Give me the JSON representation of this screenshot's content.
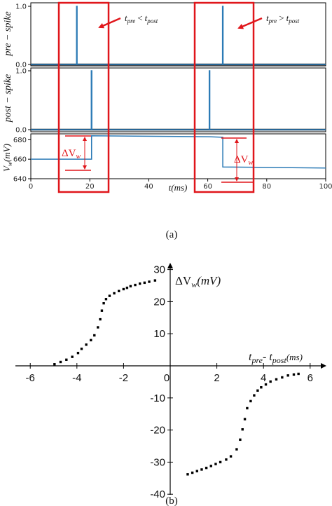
{
  "captions": {
    "a": "(a)",
    "b": "(b)"
  },
  "colors": {
    "trace": "#2c7bb6",
    "annotation": "#e0161b",
    "axis": "#000000",
    "points": "#000000"
  },
  "chart_data": [
    {
      "type": "line",
      "panel": "a",
      "xlabel": "t(ms)",
      "xlim": [
        0,
        100
      ],
      "xticks": [
        "0",
        "20",
        "40",
        "60",
        "80",
        "100"
      ],
      "panels": [
        {
          "ylabel": "pre − spike",
          "ylim": [
            0,
            1
          ],
          "yticks": [
            "0.0",
            "1.0"
          ],
          "series": [
            {
              "x": [
                0,
                15.5,
                15.5,
                15.7,
                15.7,
                65,
                65,
                65.2,
                65.2,
                100
              ],
              "y": [
                0,
                0,
                1,
                1,
                0,
                0,
                1,
                1,
                0,
                0
              ]
            }
          ]
        },
        {
          "ylabel": "post − spike",
          "ylim": [
            0,
            1
          ],
          "yticks": [
            "0.0",
            "1.0"
          ],
          "series": [
            {
              "x": [
                0,
                20.5,
                20.5,
                20.7,
                20.7,
                60.5,
                60.5,
                60.7,
                60.7,
                100
              ],
              "y": [
                0,
                0,
                1,
                1,
                0,
                0,
                1,
                1,
                0,
                0
              ]
            }
          ]
        },
        {
          "ylabel": "V_w(mV)",
          "ylim": [
            640,
            686
          ],
          "yticks": [
            "640",
            "660",
            "680"
          ],
          "series": [
            {
              "x": [
                0,
                20.6,
                20.6,
                60.6,
                60.6,
                65.1,
                65.1,
                100
              ],
              "y": [
                660,
                660,
                684,
                683,
                683,
                682.5,
                652,
                651
              ]
            }
          ]
        }
      ],
      "annotations": [
        {
          "label_main": "t",
          "sub1": "pre",
          "op": "<",
          "sub2": "post"
        },
        {
          "label_main": "t",
          "sub1": "pre",
          "op": ">",
          "sub2": "post"
        },
        {
          "label": "ΔV",
          "sub": "w"
        },
        {
          "label": "ΔV",
          "sub": "w"
        }
      ]
    },
    {
      "type": "scatter",
      "panel": "b",
      "xlabel_main": "t",
      "xlabel_sub1": "pre",
      "xlabel_sep": "- t",
      "xlabel_sub2": "post",
      "xlabel_unit": "(ms)",
      "ylabel_main": "ΔV",
      "ylabel_sub": "w",
      "ylabel_unit": "(mV)",
      "xlim": [
        -6,
        6
      ],
      "ylim": [
        -40,
        35
      ],
      "xticks": [
        "-6",
        "-4",
        "-2",
        "0",
        "2",
        "4",
        "6"
      ],
      "yticks": [
        "30",
        "20",
        "10",
        "-10",
        "-20",
        "-30",
        "-40"
      ],
      "x": [
        -4.96,
        -4.7,
        -4.45,
        -4.2,
        -3.95,
        -3.8,
        -3.6,
        -3.4,
        -3.25,
        -3.1,
        -3.0,
        -2.93,
        -2.85,
        -2.75,
        -2.6,
        -2.4,
        -2.2,
        -2.0,
        -1.85,
        -1.7,
        -1.5,
        -1.3,
        -1.1,
        -0.9,
        -0.65,
        0.75,
        0.95,
        1.15,
        1.35,
        1.55,
        1.75,
        1.95,
        2.15,
        2.4,
        2.6,
        2.85,
        3.0,
        3.1,
        3.2,
        3.3,
        3.45,
        3.6,
        3.75,
        3.9,
        4.1,
        4.3,
        4.55,
        4.8,
        5.05,
        5.3,
        5.5
      ],
      "y": [
        0.5,
        1.2,
        1.9,
        2.8,
        4.0,
        5.3,
        6.6,
        8.0,
        9.5,
        12.0,
        14.5,
        17.2,
        19.5,
        20.8,
        21.8,
        22.6,
        23.3,
        23.9,
        24.3,
        24.8,
        25.2,
        25.6,
        25.9,
        26.2,
        26.6,
        -33.8,
        -33.3,
        -32.8,
        -32.3,
        -31.8,
        -31.2,
        -30.6,
        -30.0,
        -29.2,
        -28.2,
        -26.0,
        -23.0,
        -19.8,
        -16.6,
        -13.2,
        -11.0,
        -9.2,
        -7.7,
        -6.7,
        -5.8,
        -4.9,
        -4.2,
        -3.6,
        -3.0,
        -2.7,
        -2.5
      ]
    }
  ]
}
